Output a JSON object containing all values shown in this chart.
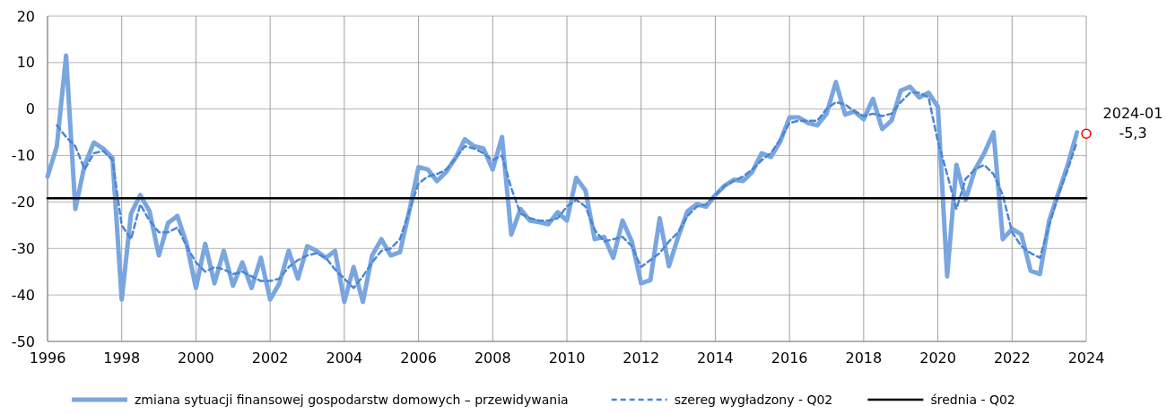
{
  "chart_data": {
    "type": "line",
    "xlim": [
      1996,
      2024
    ],
    "xticks": [
      1996,
      1998,
      2000,
      2002,
      2004,
      2006,
      2008,
      2010,
      2012,
      2014,
      2016,
      2018,
      2020,
      2022,
      2024
    ],
    "ylim": [
      -50,
      20
    ],
    "yticks": [
      -50,
      -40,
      -30,
      -20,
      -10,
      0,
      10,
      20
    ],
    "grid": true,
    "legend": "bottom",
    "series": [
      {
        "name": "zmiana sytuacji finansowej gospodarstw domowych – przewidywania",
        "color": "#7aa6df",
        "line_style": "solid",
        "x": [
          1996,
          1996.25,
          1996.5,
          1996.75,
          1997,
          1997.25,
          1997.5,
          1997.75,
          1998,
          1998.25,
          1998.5,
          1998.75,
          1999,
          1999.25,
          1999.5,
          1999.75,
          2000,
          2000.25,
          2000.5,
          2000.75,
          2001,
          2001.25,
          2001.5,
          2001.75,
          2002,
          2002.25,
          2002.5,
          2002.75,
          2003,
          2003.25,
          2003.5,
          2003.75,
          2004,
          2004.25,
          2004.5,
          2004.75,
          2005,
          2005.25,
          2005.5,
          2005.75,
          2006,
          2006.25,
          2006.5,
          2006.75,
          2007,
          2007.25,
          2007.5,
          2007.75,
          2008,
          2008.25,
          2008.5,
          2008.75,
          2009,
          2009.25,
          2009.5,
          2009.75,
          2010,
          2010.25,
          2010.5,
          2010.75,
          2011,
          2011.25,
          2011.5,
          2011.75,
          2012,
          2012.25,
          2012.5,
          2012.75,
          2013,
          2013.25,
          2013.5,
          2013.75,
          2014,
          2014.25,
          2014.5,
          2014.75,
          2015,
          2015.25,
          2015.5,
          2015.75,
          2016,
          2016.25,
          2016.5,
          2016.75,
          2017,
          2017.25,
          2017.5,
          2017.75,
          2018,
          2018.25,
          2018.5,
          2018.75,
          2019,
          2019.25,
          2019.5,
          2019.75,
          2020,
          2020.25,
          2020.5,
          2020.75,
          2021,
          2021.25,
          2021.5,
          2021.75,
          2022,
          2022.25,
          2022.5,
          2022.75,
          2023,
          2023.25,
          2023.5,
          2023.75
        ],
        "values": [
          -14.5,
          -8,
          11.5,
          -21.5,
          -12,
          -7.2,
          -8.5,
          -10.5,
          -41,
          -22.5,
          -18.5,
          -22,
          -31.5,
          -24.5,
          -23,
          -29,
          -38.5,
          -29,
          -37.5,
          -30.5,
          -38,
          -33,
          -38.5,
          -32,
          -41,
          -37.5,
          -30.5,
          -36.5,
          -29.5,
          -30.5,
          -32,
          -30.5,
          -41.5,
          -34,
          -41.5,
          -31.5,
          -28,
          -31.5,
          -30.8,
          -22,
          -12.5,
          -13,
          -15.5,
          -13.5,
          -10.5,
          -6.5,
          -8,
          -8.5,
          -13,
          -6,
          -27,
          -21.5,
          -24,
          -24.3,
          -24.8,
          -22.2,
          -24,
          -14.8,
          -17.5,
          -28,
          -27.5,
          -32,
          -24,
          -28.5,
          -37.5,
          -36.8,
          -23.5,
          -33.8,
          -27.5,
          -22,
          -20.5,
          -21,
          -18.5,
          -16.5,
          -15.2,
          -15.5,
          -13.5,
          -9.5,
          -10.3,
          -7,
          -1.8,
          -1.8,
          -3,
          -3.5,
          -1,
          5.8,
          -1.2,
          -0.5,
          -2.2,
          2.2,
          -4.3,
          -2.5,
          4,
          4.8,
          2.5,
          3.5,
          0.5,
          -36,
          -12,
          -19.5,
          -13,
          -9.5,
          -5,
          -28,
          -25.8,
          -27,
          -34.8,
          -35.5,
          -24,
          -18,
          -12,
          -5
        ]
      },
      {
        "name": "szereg wygładzony - Q02",
        "color": "#4a86d4",
        "line_style": "dashed",
        "x": [
          1996.25,
          1996.5,
          1996.75,
          1997,
          1997.25,
          1997.5,
          1997.75,
          1998,
          1998.25,
          1998.5,
          1998.75,
          1999,
          1999.25,
          1999.5,
          1999.75,
          2000,
          2000.25,
          2000.5,
          2000.75,
          2001,
          2001.25,
          2001.5,
          2001.75,
          2002,
          2002.25,
          2002.5,
          2002.75,
          2003,
          2003.25,
          2003.5,
          2003.75,
          2004,
          2004.25,
          2004.5,
          2004.75,
          2005,
          2005.25,
          2005.5,
          2005.75,
          2006,
          2006.25,
          2006.5,
          2006.75,
          2007,
          2007.25,
          2007.5,
          2007.75,
          2008,
          2008.25,
          2008.5,
          2008.75,
          2009,
          2009.25,
          2009.5,
          2009.75,
          2010,
          2010.25,
          2010.5,
          2010.75,
          2011,
          2011.25,
          2011.5,
          2011.75,
          2012,
          2012.25,
          2012.5,
          2012.75,
          2013,
          2013.25,
          2013.5,
          2013.75,
          2014,
          2014.25,
          2014.5,
          2014.75,
          2015,
          2015.25,
          2015.5,
          2015.75,
          2016,
          2016.25,
          2016.5,
          2016.75,
          2017,
          2017.25,
          2017.5,
          2017.75,
          2018,
          2018.25,
          2018.5,
          2018.75,
          2019,
          2019.25,
          2019.5,
          2019.75,
          2020,
          2020.25,
          2020.5,
          2020.75,
          2021,
          2021.25,
          2021.5,
          2021.75,
          2022,
          2022.25,
          2022.5,
          2022.75,
          2023,
          2023.25,
          2023.5,
          2023.75
        ],
        "values": [
          -3.5,
          -6,
          -8,
          -13,
          -9.5,
          -9,
          -11,
          -25,
          -28,
          -20.5,
          -24,
          -26.5,
          -26.5,
          -25.5,
          -29.5,
          -33,
          -35,
          -34,
          -34.5,
          -35.5,
          -35,
          -36,
          -37,
          -37,
          -36.5,
          -34,
          -32.5,
          -31.5,
          -31,
          -32,
          -34.5,
          -36.5,
          -38.5,
          -36,
          -33,
          -30.5,
          -30,
          -28,
          -22,
          -16,
          -14.5,
          -14,
          -13,
          -10.5,
          -8,
          -8.5,
          -9.5,
          -11,
          -10,
          -17,
          -22.5,
          -23.5,
          -24,
          -24,
          -23.5,
          -21,
          -19.5,
          -21,
          -26,
          -28.5,
          -28,
          -27.5,
          -29.5,
          -34,
          -32.5,
          -31,
          -28.5,
          -26.5,
          -23,
          -21,
          -20.5,
          -18.5,
          -16.5,
          -15.5,
          -14.5,
          -13,
          -11,
          -9.5,
          -6.5,
          -3,
          -2.5,
          -2.5,
          -2.5,
          0,
          1.5,
          1,
          -0.5,
          -1.5,
          -1,
          -1.5,
          -1,
          1.5,
          3.5,
          3.5,
          2.5,
          -7,
          -14,
          -21.5,
          -15,
          -13,
          -12,
          -14,
          -18.5,
          -26.5,
          -29.5,
          -31,
          -32,
          -25,
          -18.5,
          -13,
          -7
        ]
      },
      {
        "name": "średnia - Q02",
        "color": "#000000",
        "line_style": "solid",
        "x": [
          1996,
          2024
        ],
        "values": [
          -19.2,
          -19.2
        ]
      },
      {
        "type": "scatter",
        "color": "#ff0000",
        "marker": "circle",
        "x": [
          2024
        ],
        "values": [
          -5.3
        ]
      }
    ],
    "annotations": [
      {
        "text": "2024-01\n-5,3",
        "x": 2024,
        "y": -5.3
      }
    ]
  }
}
